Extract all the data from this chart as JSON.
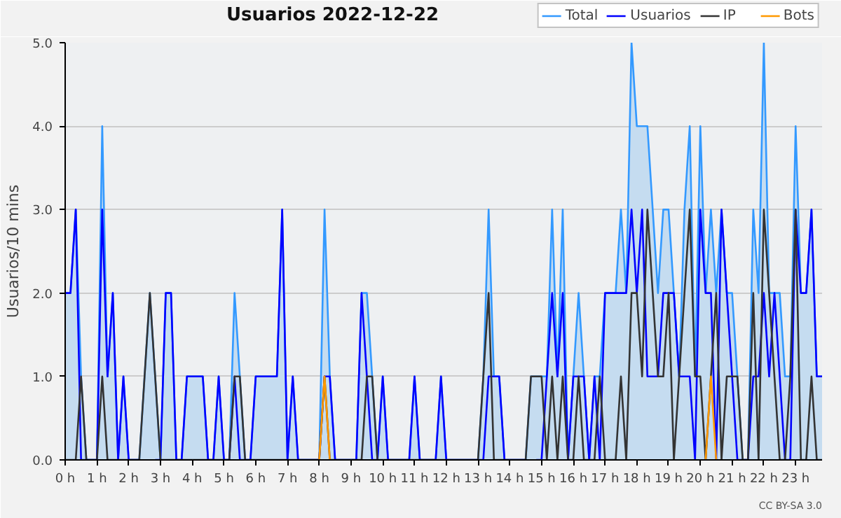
{
  "chart_data": {
    "type": "line",
    "title": "Usuarios  2022-12-22",
    "ylabel": "Usuarios/10 mins",
    "annotations": [
      "CC BY-SA 3.0"
    ],
    "x": [
      0,
      0.1667,
      0.3333,
      0.5,
      0.6667,
      0.8333,
      1,
      1.1667,
      1.3333,
      1.5,
      1.6667,
      1.8333,
      2,
      2.1667,
      2.3333,
      2.5,
      2.6667,
      2.8333,
      3,
      3.1667,
      3.3333,
      3.5,
      3.6667,
      3.8333,
      4,
      4.1667,
      4.3333,
      4.5,
      4.6667,
      4.8333,
      5,
      5.1667,
      5.3333,
      5.5,
      5.6667,
      5.8333,
      6,
      6.1667,
      6.3333,
      6.5,
      6.6667,
      6.8333,
      7,
      7.1667,
      7.3333,
      7.5,
      7.6667,
      7.8333,
      8,
      8.1667,
      8.3333,
      8.5,
      8.6667,
      8.8333,
      9,
      9.1667,
      9.3333,
      9.5,
      9.6667,
      9.8333,
      10,
      10.1667,
      10.3333,
      10.5,
      10.6667,
      10.8333,
      11,
      11.1667,
      11.3333,
      11.5,
      11.6667,
      11.8333,
      12,
      12.1667,
      12.3333,
      12.5,
      12.6667,
      12.8333,
      13,
      13.1667,
      13.3333,
      13.5,
      13.6667,
      13.8333,
      14,
      14.1667,
      14.3333,
      14.5,
      14.6667,
      14.8333,
      15,
      15.1667,
      15.3333,
      15.5,
      15.6667,
      15.8333,
      16,
      16.1667,
      16.3333,
      16.5,
      16.6667,
      16.8333,
      17,
      17.1667,
      17.3333,
      17.5,
      17.6667,
      17.8333,
      18,
      18.1667,
      18.3333,
      18.5,
      18.6667,
      18.8333,
      19,
      19.1667,
      19.3333,
      19.5,
      19.6667,
      19.8333,
      20,
      20.1667,
      20.3333,
      20.5,
      20.6667,
      20.8333,
      21,
      21.1667,
      21.3333,
      21.5,
      21.6667,
      21.8333,
      22,
      22.1667,
      22.3333,
      22.5,
      22.6667,
      22.8333,
      23,
      23.1667,
      23.3333,
      23.5,
      23.6667,
      23.8333
    ],
    "series": [
      {
        "name": "Total",
        "type": "area",
        "color": "#3399ff",
        "values": [
          2,
          2,
          3,
          1,
          0,
          0,
          0,
          4,
          1,
          2,
          0,
          1,
          0,
          0,
          0,
          1,
          2,
          1,
          0,
          2,
          2,
          0,
          0,
          1,
          1,
          1,
          1,
          0,
          0,
          1,
          0,
          0,
          2,
          1,
          0,
          0,
          1,
          1,
          1,
          1,
          1,
          3,
          0,
          1,
          0,
          0,
          0,
          0,
          0,
          3,
          1,
          0,
          0,
          0,
          0,
          0,
          2,
          2,
          1,
          0,
          1,
          0,
          0,
          0,
          0,
          0,
          1,
          0,
          0,
          0,
          0,
          1,
          0,
          0,
          0,
          0,
          0,
          0,
          0,
          1,
          3,
          1,
          1,
          0,
          0,
          0,
          0,
          0,
          1,
          1,
          1,
          1,
          3,
          1,
          3,
          0,
          1,
          2,
          1,
          0,
          1,
          1,
          2,
          2,
          2,
          3,
          2,
          5,
          4,
          4,
          4,
          3,
          2,
          3,
          3,
          2,
          1,
          3,
          4,
          1,
          4,
          2,
          3,
          2,
          3,
          2,
          2,
          1,
          0,
          0,
          3,
          2,
          5,
          2,
          2,
          2,
          1,
          1,
          4,
          2,
          2,
          3,
          1,
          1
        ]
      },
      {
        "name": "Usuarios",
        "type": "line",
        "color": "#0000ff",
        "values": [
          2,
          2,
          3,
          0,
          0,
          0,
          0,
          3,
          1,
          2,
          0,
          1,
          0,
          0,
          0,
          null,
          null,
          0,
          0,
          2,
          2,
          0,
          0,
          1,
          1,
          1,
          1,
          0,
          0,
          1,
          0,
          0,
          1,
          0,
          0,
          0,
          1,
          1,
          1,
          1,
          1,
          3,
          0,
          1,
          0,
          0,
          0,
          0,
          0,
          1,
          1,
          0,
          0,
          0,
          0,
          0,
          2,
          1,
          0,
          0,
          1,
          0,
          0,
          0,
          0,
          0,
          1,
          0,
          0,
          0,
          0,
          1,
          0,
          0,
          0,
          0,
          0,
          0,
          0,
          0,
          1,
          1,
          1,
          0,
          0,
          0,
          0,
          0,
          null,
          0,
          0,
          1,
          2,
          1,
          2,
          0,
          1,
          1,
          1,
          0,
          1,
          0,
          2,
          2,
          2,
          2,
          2,
          3,
          2,
          3,
          1,
          1,
          1,
          2,
          2,
          2,
          1,
          1,
          1,
          0,
          3,
          2,
          2,
          0,
          3,
          2,
          1,
          0,
          0,
          0,
          1,
          1,
          2,
          1,
          2,
          1,
          0,
          0,
          3,
          2,
          2,
          3,
          1,
          1
        ]
      },
      {
        "name": "IP",
        "type": "line",
        "color": "#333333",
        "values": [
          0,
          0,
          0,
          1,
          0,
          0,
          0,
          1,
          0,
          0,
          0,
          0,
          0,
          0,
          0,
          1,
          2,
          1,
          0,
          0,
          0,
          0,
          0,
          0,
          0,
          0,
          0,
          0,
          0,
          0,
          0,
          0,
          1,
          1,
          0,
          0,
          0,
          0,
          0,
          0,
          0,
          0,
          0,
          0,
          0,
          0,
          0,
          0,
          0,
          1,
          0,
          0,
          0,
          0,
          0,
          0,
          0,
          1,
          1,
          0,
          0,
          0,
          0,
          0,
          0,
          0,
          0,
          0,
          0,
          0,
          0,
          0,
          0,
          0,
          0,
          0,
          0,
          0,
          0,
          1,
          2,
          0,
          0,
          0,
          0,
          0,
          0,
          0,
          1,
          1,
          1,
          0,
          1,
          0,
          1,
          0,
          0,
          1,
          0,
          0,
          0,
          1,
          0,
          0,
          0,
          1,
          0,
          2,
          2,
          1,
          3,
          2,
          1,
          1,
          2,
          0,
          1,
          2,
          3,
          1,
          1,
          0,
          1,
          2,
          0,
          1,
          1,
          1,
          0,
          0,
          2,
          0,
          3,
          2,
          1,
          0,
          0,
          1,
          3,
          0,
          0,
          1,
          0,
          0
        ]
      },
      {
        "name": "Bots",
        "type": "line",
        "color": "#ff9900",
        "x": [
          8,
          8.1667,
          8.3333,
          8.5,
          20.1667,
          20.3333,
          20.5
        ],
        "values": [
          0,
          1,
          0,
          null,
          0,
          1,
          0
        ]
      }
    ],
    "xlim": [
      0,
      23.8333
    ],
    "ylim": [
      0,
      5
    ],
    "xticks": [
      {
        "value": 0,
        "label": "0 h"
      },
      {
        "value": 1,
        "label": "1 h"
      },
      {
        "value": 2,
        "label": "2 h"
      },
      {
        "value": 3,
        "label": "3 h"
      },
      {
        "value": 4,
        "label": "4 h"
      },
      {
        "value": 5,
        "label": "5 h"
      },
      {
        "value": 6,
        "label": "6 h"
      },
      {
        "value": 7,
        "label": "7 h"
      },
      {
        "value": 8,
        "label": "8 h"
      },
      {
        "value": 9,
        "label": "9 h"
      },
      {
        "value": 10,
        "label": "10 h"
      },
      {
        "value": 11,
        "label": "11 h"
      },
      {
        "value": 12,
        "label": "12 h"
      },
      {
        "value": 13,
        "label": "13 h"
      },
      {
        "value": 14,
        "label": "14 h"
      },
      {
        "value": 15,
        "label": "15 h"
      },
      {
        "value": 16,
        "label": "16 h"
      },
      {
        "value": 17,
        "label": "17 h"
      },
      {
        "value": 18,
        "label": "18 h"
      },
      {
        "value": 19,
        "label": "19 h"
      },
      {
        "value": 20,
        "label": "20 h"
      },
      {
        "value": 21,
        "label": "21 h"
      },
      {
        "value": 22,
        "label": "22 h"
      },
      {
        "value": 23,
        "label": "23 h"
      }
    ],
    "yticks": [
      {
        "value": 0,
        "label": "0.0"
      },
      {
        "value": 1,
        "label": "1.0"
      },
      {
        "value": 2,
        "label": "2.0"
      },
      {
        "value": 3,
        "label": "3.0"
      },
      {
        "value": 4,
        "label": "4.0"
      },
      {
        "value": 5,
        "label": "5.0"
      }
    ],
    "grid": "y",
    "legend": "top right",
    "marker": "none",
    "line_style": "solid"
  }
}
